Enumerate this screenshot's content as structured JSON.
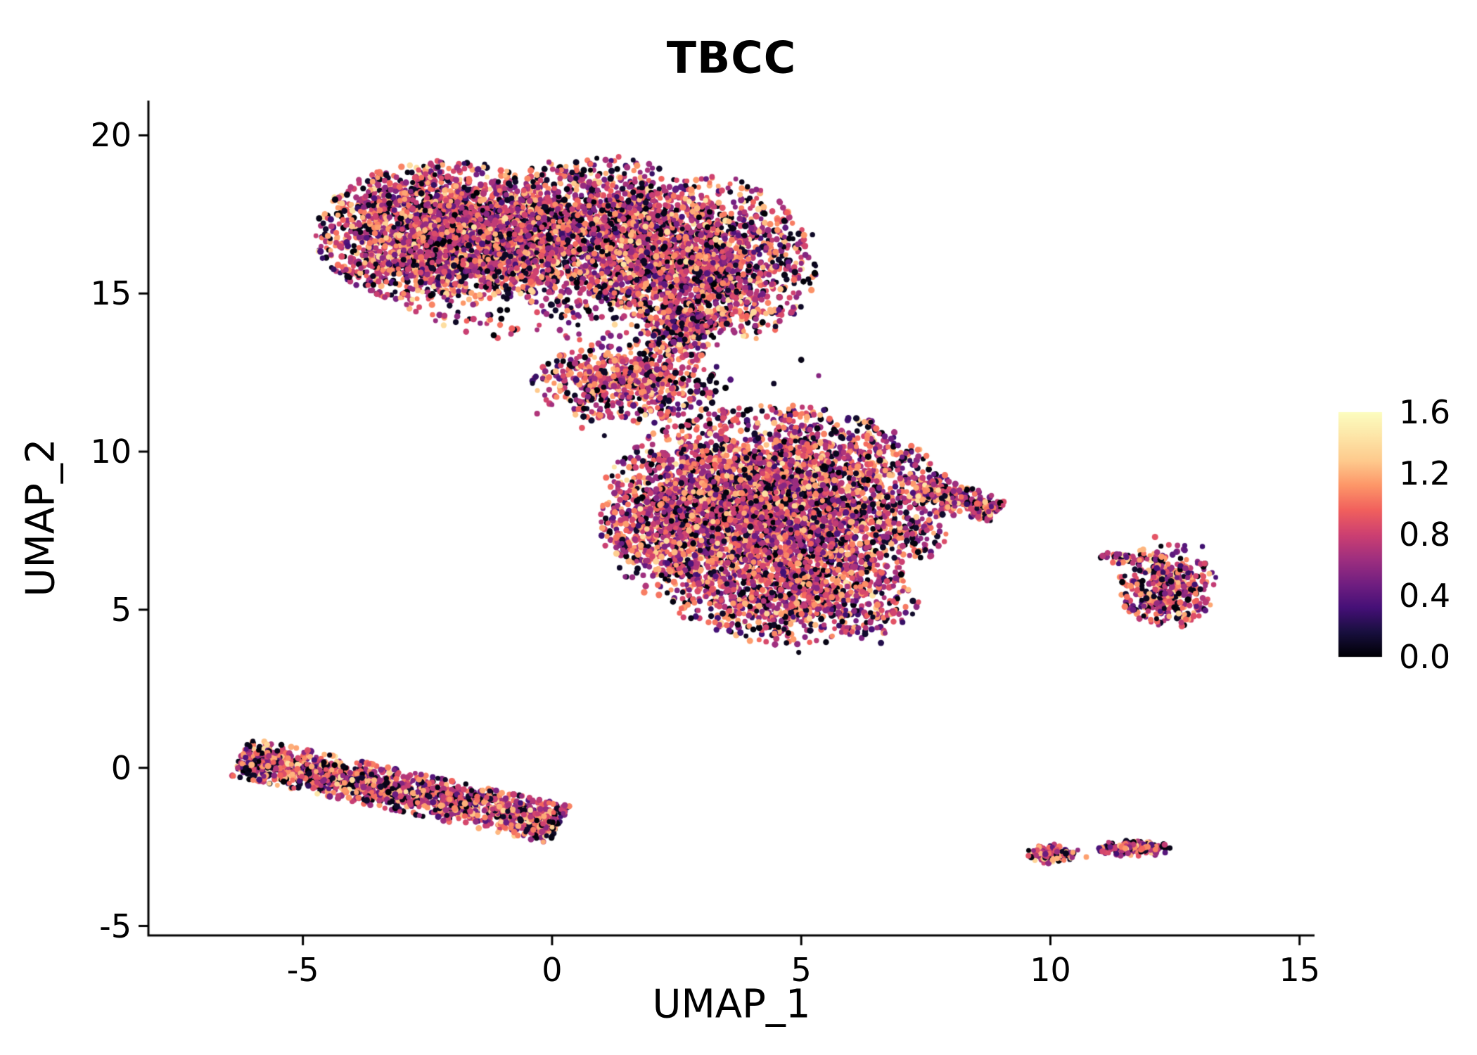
{
  "chart_data": {
    "type": "scatter",
    "title": "TBCC",
    "xlabel": "UMAP_1",
    "ylabel": "UMAP_2",
    "xlim": [
      -8.1,
      15.3
    ],
    "ylim": [
      -5.3,
      21.1
    ],
    "grid": false,
    "x_ticks": [
      {
        "v": -5,
        "label": "-5"
      },
      {
        "v": 0,
        "label": "0"
      },
      {
        "v": 5,
        "label": "5"
      },
      {
        "v": 10,
        "label": "10"
      },
      {
        "v": 15,
        "label": "15"
      }
    ],
    "y_ticks": [
      {
        "v": -5,
        "label": "-5"
      },
      {
        "v": 0,
        "label": "0"
      },
      {
        "v": 5,
        "label": "5"
      },
      {
        "v": 10,
        "label": "10"
      },
      {
        "v": 15,
        "label": "15"
      },
      {
        "v": 20,
        "label": "20"
      }
    ],
    "colorbar": {
      "vmin": 0.0,
      "vmax": 1.6,
      "colormap": "magma",
      "position": "right",
      "ticks": [
        {
          "v": 1.6,
          "label": "1.6"
        },
        {
          "v": 1.2,
          "label": "1.2"
        },
        {
          "v": 0.8,
          "label": "0.8"
        },
        {
          "v": 0.4,
          "label": "0.4"
        },
        {
          "v": 0.0,
          "label": "0.0"
        }
      ],
      "anchors": [
        [
          0.0,
          "#000004"
        ],
        [
          0.1,
          "#180f3e"
        ],
        [
          0.2,
          "#451077"
        ],
        [
          0.3,
          "#721f81"
        ],
        [
          0.4,
          "#9f2f7f"
        ],
        [
          0.5,
          "#cd4071"
        ],
        [
          0.6,
          "#f1605d"
        ],
        [
          0.7,
          "#fd9668"
        ],
        [
          0.8,
          "#feca8d"
        ],
        [
          0.9,
          "#fde5a7"
        ],
        [
          1.0,
          "#fcfdbf"
        ]
      ]
    },
    "point_value_mixture": [
      {
        "p": 0.2,
        "range": [
          0.0,
          0.12
        ]
      },
      {
        "p": 0.1,
        "range": [
          0.25,
          0.55
        ]
      },
      {
        "p": 0.4,
        "range": [
          0.55,
          0.9
        ]
      },
      {
        "p": 0.26,
        "range": [
          0.95,
          1.25
        ]
      },
      {
        "p": 0.04,
        "range": [
          1.25,
          1.45
        ]
      }
    ],
    "seed": 42,
    "clusters": [
      {
        "name": "upper-left-lobe",
        "shape": "gaussian",
        "cx": -2.1,
        "cy": 16.9,
        "sx": 1.35,
        "sy": 1.15,
        "clip": 2.0,
        "n": 2700
      },
      {
        "name": "upper-mid-lobe",
        "shape": "gaussian",
        "cx": 0.9,
        "cy": 16.8,
        "sx": 1.2,
        "sy": 1.3,
        "clip": 2.0,
        "n": 1500
      },
      {
        "name": "upper-right-lobe",
        "shape": "gaussian",
        "cx": 3.1,
        "cy": 16.0,
        "sx": 1.15,
        "sy": 1.4,
        "clip": 1.95,
        "n": 1600
      },
      {
        "name": "upper-fringe",
        "shape": "gaussian",
        "cx": 0.0,
        "cy": 16.0,
        "sx": 2.3,
        "sy": 1.9,
        "clip": 1.5,
        "n": 450
      },
      {
        "name": "bridge-blob",
        "shape": "gaussian",
        "cx": 1.6,
        "cy": 12.2,
        "sx": 1.05,
        "sy": 0.7,
        "clip": 1.9,
        "n": 650
      },
      {
        "name": "bridge-connector",
        "shape": "stripe",
        "x1": 2.3,
        "y1": 13.2,
        "x2": 3.0,
        "y2": 14.6,
        "w": 0.7,
        "n": 180
      },
      {
        "name": "middle-main",
        "shape": "gaussian",
        "cx": 4.5,
        "cy": 8.2,
        "sx": 1.75,
        "sy": 1.6,
        "clip": 2.05,
        "n": 4300
      },
      {
        "name": "middle-left-bulge",
        "shape": "gaussian",
        "cx": 2.6,
        "cy": 7.6,
        "sx": 0.9,
        "sy": 1.3,
        "clip": 1.8,
        "n": 500
      },
      {
        "name": "middle-bottom",
        "shape": "gaussian",
        "cx": 4.9,
        "cy": 5.2,
        "sx": 1.4,
        "sy": 0.75,
        "clip": 1.8,
        "n": 650
      },
      {
        "name": "middle-right-arm",
        "shape": "stripe",
        "x1": 7.3,
        "y1": 8.9,
        "x2": 8.95,
        "y2": 8.15,
        "w": 0.4,
        "n": 240
      },
      {
        "name": "right-cluster",
        "shape": "gaussian",
        "cx": 12.35,
        "cy": 5.75,
        "sx": 0.52,
        "sy": 0.72,
        "clip": 1.9,
        "n": 430
      },
      {
        "name": "right-cluster-tip",
        "shape": "gaussian",
        "cx": 11.35,
        "cy": 6.65,
        "sx": 0.28,
        "sy": 0.13,
        "clip": 1.8,
        "n": 35
      },
      {
        "name": "bottom-left-stripe",
        "shape": "stripe",
        "x1": -6.25,
        "y1": 0.35,
        "x2": 0.15,
        "y2": -1.8,
        "w": 0.62,
        "n": 1550
      },
      {
        "name": "bottom-right-a",
        "shape": "gaussian",
        "cx": 10.0,
        "cy": -2.72,
        "sx": 0.26,
        "sy": 0.15,
        "clip": 2.0,
        "n": 120
      },
      {
        "name": "bottom-right-b",
        "shape": "gaussian",
        "cx": 11.62,
        "cy": -2.55,
        "sx": 0.4,
        "sy": 0.13,
        "clip": 2.0,
        "n": 160
      }
    ],
    "extra_points": [
      [
        4.95,
        3.65,
        0.05
      ],
      [
        10.72,
        -2.82,
        1.15
      ],
      [
        10.55,
        -2.6,
        0.6
      ],
      [
        5.35,
        12.4,
        0.55
      ],
      [
        4.45,
        12.15,
        0.1
      ],
      [
        5.0,
        12.9,
        0.05
      ],
      [
        0.6,
        10.75,
        0.9
      ],
      [
        1.05,
        10.5,
        0.1
      ],
      [
        -0.3,
        11.2,
        0.7
      ],
      [
        9.05,
        8.3,
        0.8
      ],
      [
        6.6,
        3.95,
        0.2
      ],
      [
        12.1,
        7.3,
        0.9
      ],
      [
        13.05,
        7.0,
        0.3
      ]
    ]
  }
}
